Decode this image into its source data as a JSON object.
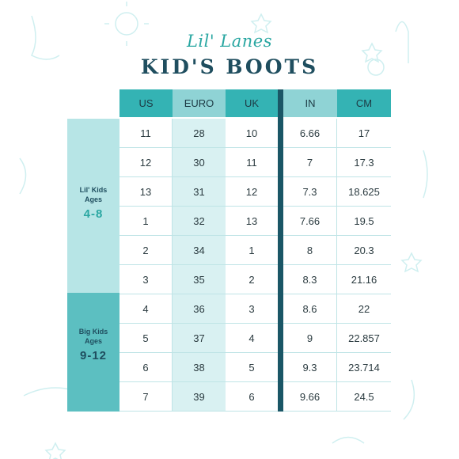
{
  "header": {
    "brand": "Lil' Lanes",
    "title": "KID'S BOOTS"
  },
  "table": {
    "columns": [
      "US",
      "EURO",
      "UK",
      "IN",
      "CM"
    ],
    "groups": [
      {
        "name_line1": "Lil' Kids",
        "name_line2": "Ages",
        "ages": "4-8"
      },
      {
        "name_line1": "Big Kids",
        "name_line2": "Ages",
        "ages": "9-12"
      }
    ],
    "rows": [
      [
        "11",
        "28",
        "10",
        "6.66",
        "17"
      ],
      [
        "12",
        "30",
        "11",
        "7",
        "17.3"
      ],
      [
        "13",
        "31",
        "12",
        "7.3",
        "18.625"
      ],
      [
        "1",
        "32",
        "13",
        "7.66",
        "19.5"
      ],
      [
        "2",
        "34",
        "1",
        "8",
        "20.3"
      ],
      [
        "3",
        "35",
        "2",
        "8.3",
        "21.16"
      ],
      [
        "4",
        "36",
        "3",
        "8.6",
        "22"
      ],
      [
        "5",
        "37",
        "4",
        "9",
        "22.857"
      ],
      [
        "6",
        "38",
        "5",
        "9.3",
        "23.714"
      ],
      [
        "7",
        "39",
        "6",
        "9.66",
        "24.5"
      ]
    ]
  },
  "colors": {
    "header_teal": "#34b3b4",
    "header_light": "#8fd3d5",
    "divider_navy": "#1a5666",
    "group_light": "#b7e5e6",
    "group_dark": "#5cbfc1",
    "title_navy": "#1f4e5f",
    "brand_teal": "#2aa7a2"
  }
}
